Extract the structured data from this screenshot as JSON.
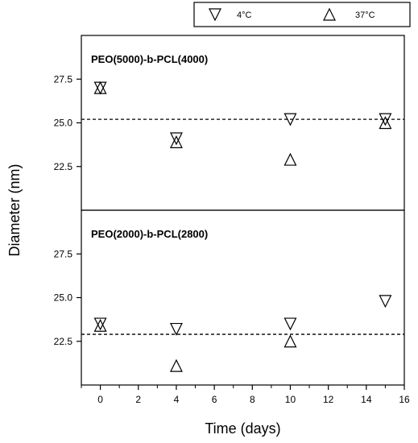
{
  "chart_data": {
    "type": "scatter",
    "xlabel": "Time (days)",
    "ylabel": "Diameter (nm)",
    "xlim": [
      -1,
      16
    ],
    "x_ticks": [
      0,
      2,
      4,
      6,
      8,
      10,
      12,
      14,
      16
    ],
    "legend": {
      "placement": "top-right",
      "entries": [
        {
          "label": "4°C",
          "marker": "triangle-down"
        },
        {
          "label": "37°C",
          "marker": "triangle-up"
        }
      ]
    },
    "panels": [
      {
        "title": "PEO(5000)-b-PCL(4000)",
        "ylim": [
          20,
          30
        ],
        "y_ticks": [
          22.5,
          25.0,
          27.5
        ],
        "y_tick_labels": [
          "22.5",
          "25.0",
          "27.5"
        ],
        "reference_line": 25.2,
        "series": [
          {
            "name": "4°C",
            "marker": "triangle-down",
            "x": [
              0,
              4,
              10,
              15
            ],
            "y": [
              27.0,
              24.1,
              25.2,
              25.2
            ]
          },
          {
            "name": "37°C",
            "marker": "triangle-up",
            "x": [
              0,
              4,
              10,
              15
            ],
            "y": [
              27.0,
              23.9,
              22.9,
              25.0
            ]
          }
        ]
      },
      {
        "title": "PEO(2000)-b-PCL(2800)",
        "ylim": [
          20,
          30
        ],
        "y_ticks": [
          22.5,
          25.0,
          27.5
        ],
        "y_tick_labels": [
          "22.5",
          "25.0",
          "27.5"
        ],
        "reference_line": 22.9,
        "series": [
          {
            "name": "4°C",
            "marker": "triangle-down",
            "x": [
              0,
              4,
              10,
              15
            ],
            "y": [
              23.5,
              23.2,
              23.5,
              24.8
            ]
          },
          {
            "name": "37°C",
            "marker": "triangle-up",
            "x": [
              0,
              4,
              10,
              15
            ],
            "y": [
              23.4,
              21.1,
              22.5,
              null
            ]
          }
        ]
      }
    ]
  }
}
